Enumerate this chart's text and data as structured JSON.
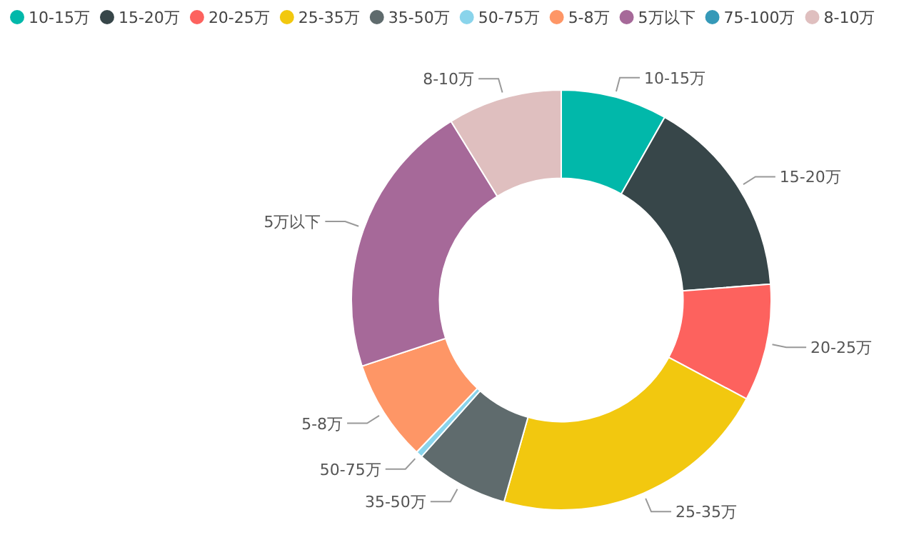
{
  "chart_data": {
    "type": "donut",
    "legend": "top left",
    "categories": [
      "10-15万",
      "15-20万",
      "20-25万",
      "25-35万",
      "35-50万",
      "50-75万",
      "5-8万",
      "5万以下",
      "75-100万",
      "8-10万"
    ],
    "values": [
      8.2,
      15.6,
      9.0,
      21.6,
      7.2,
      0.5,
      7.8,
      21.3,
      0,
      8.8
    ],
    "colors": [
      "#01b8aa",
      "#374649",
      "#fd625e",
      "#f2c80f",
      "#5f6b6d",
      "#8ad4eb",
      "#fe9666",
      "#a66999",
      "#3599b8",
      "#dfbfbf"
    ]
  }
}
